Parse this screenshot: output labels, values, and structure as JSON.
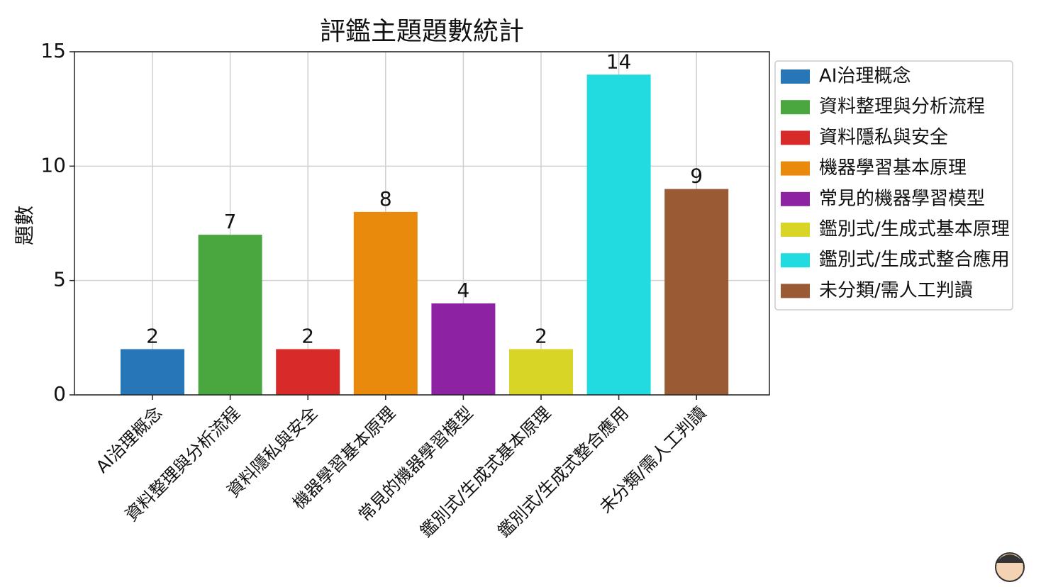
{
  "chart_data": {
    "type": "bar",
    "title": "評鑑主題題數統計",
    "y_label": "題數",
    "categories": [
      "AI治理概念",
      "資料整理與分析流程",
      "資料隱私與安全",
      "機器學習基本原理",
      "常見的機器學習模型",
      "鑑別式/生成式基本原理",
      "鑑別式/生成式整合應用",
      "未分類/需人工判讀"
    ],
    "values": [
      2,
      7,
      2,
      8,
      4,
      2,
      14,
      9
    ],
    "colors": [
      "#2776b8",
      "#4aa63f",
      "#d92a2a",
      "#ea8a0c",
      "#8d22a3",
      "#d8d526",
      "#22dbe0",
      "#9a5a33"
    ],
    "ylim": [
      0,
      15
    ],
    "yticks": [
      0,
      5,
      10,
      15
    ],
    "grid": true,
    "legend": "outside-right"
  }
}
